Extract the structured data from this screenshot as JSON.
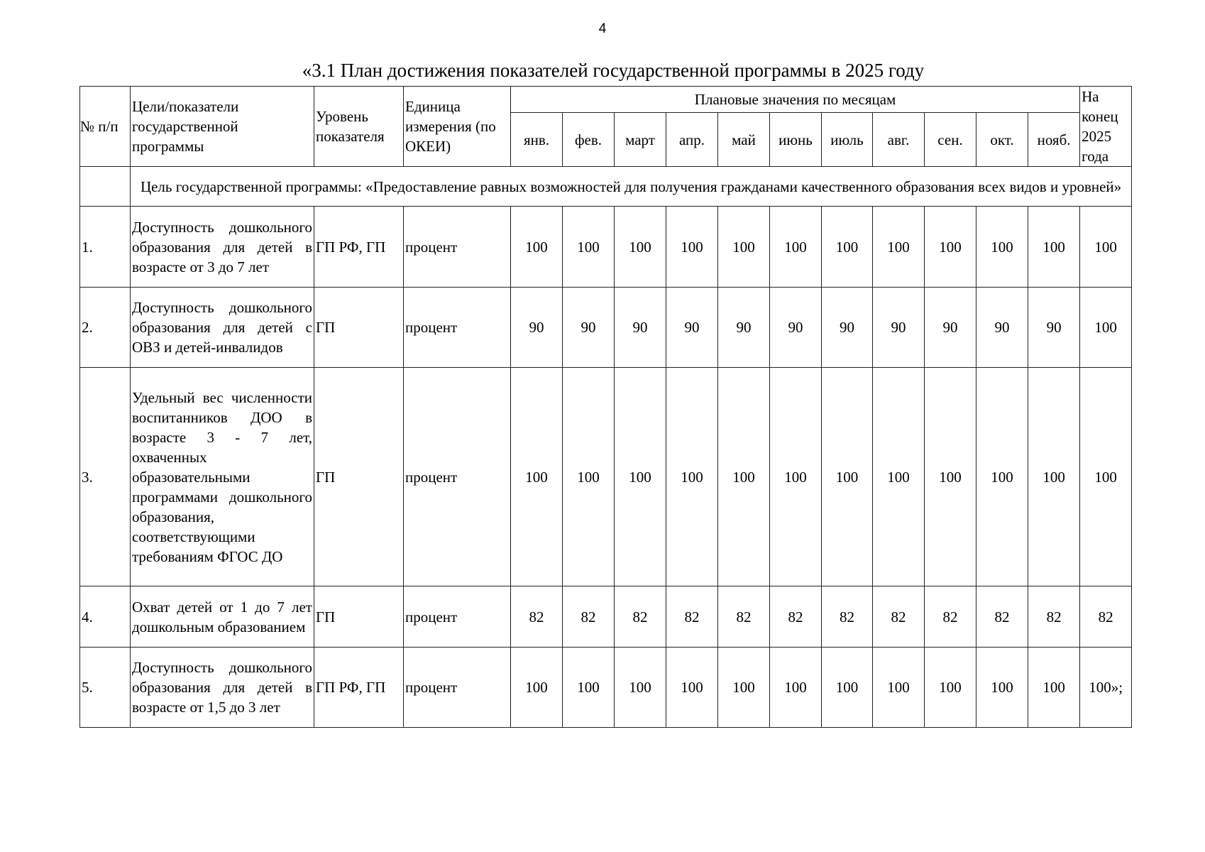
{
  "page_number": "4",
  "title": "«3.1 План достижения показателей государственной программы в 2025 году",
  "table": {
    "headers": {
      "num": "№ п/п",
      "goal": "Цели/показатели государственной программы",
      "level": "Уровень показателя",
      "unit": "Единица измерения (по ОКЕИ)",
      "monthly": "Плановые значения по месяцам",
      "end": "На конец 2025 года",
      "months": [
        "янв.",
        "фев.",
        "март",
        "апр.",
        "май",
        "июнь",
        "июль",
        "авг.",
        "сен.",
        "окт.",
        "нояб."
      ]
    },
    "goal_row": "Цель государственной программы: «Предоставление равных возможностей для получения гражданами качественного образования всех видов и уровней»",
    "rows": [
      {
        "num": "1.",
        "name": "Доступность дошкольного образования для детей в возрасте от 3 до 7 лет",
        "level": "ГП РФ, ГП",
        "unit": "процент",
        "values": [
          "100",
          "100",
          "100",
          "100",
          "100",
          "100",
          "100",
          "100",
          "100",
          "100",
          "100"
        ],
        "end": "100"
      },
      {
        "num": "2.",
        "name": "Доступность дошкольного образования для детей с ОВЗ и детей-инвалидов",
        "level": "ГП",
        "unit": "процент",
        "values": [
          "90",
          "90",
          "90",
          "90",
          "90",
          "90",
          "90",
          "90",
          "90",
          "90",
          "90"
        ],
        "end": "100"
      },
      {
        "num": "3.",
        "name": "Удельный вес численности воспитанников ДОО в возрасте 3 - 7 лет, охваченных образовательными программами дошкольного образования, соответствующими требованиям ФГОС ДО",
        "level": "ГП",
        "unit": "процент",
        "values": [
          "100",
          "100",
          "100",
          "100",
          "100",
          "100",
          "100",
          "100",
          "100",
          "100",
          "100"
        ],
        "end": "100"
      },
      {
        "num": "4.",
        "name": "Охват детей от 1 до 7 лет дошкольным образованием",
        "level": "ГП",
        "unit": "процент",
        "values": [
          "82",
          "82",
          "82",
          "82",
          "82",
          "82",
          "82",
          "82",
          "82",
          "82",
          "82"
        ],
        "end": "82"
      },
      {
        "num": "5.",
        "name": "Доступность дошкольного образования для детей в возрасте от 1,5 до 3 лет",
        "level": "ГП РФ, ГП",
        "unit": "процент",
        "values": [
          "100",
          "100",
          "100",
          "100",
          "100",
          "100",
          "100",
          "100",
          "100",
          "100",
          "100"
        ],
        "end": "100»;"
      }
    ]
  }
}
